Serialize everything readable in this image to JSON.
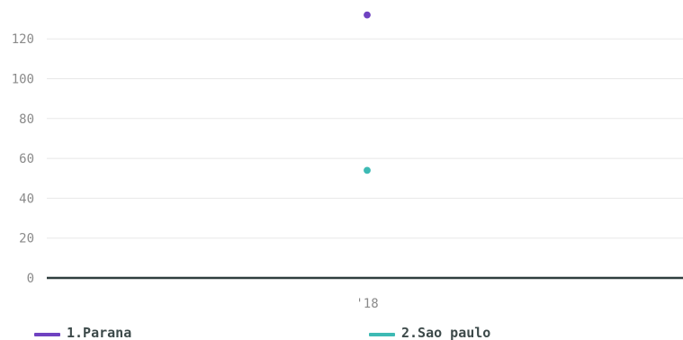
{
  "chart_data": {
    "type": "scatter",
    "categories": [
      "'18"
    ],
    "series": [
      {
        "name": "1.Parana",
        "color": "#6f42c1",
        "values": [
          132
        ]
      },
      {
        "name": "2.Sao paulo",
        "color": "#3dbab4",
        "values": [
          54
        ]
      }
    ],
    "ylim": [
      0,
      130
    ],
    "yticks": [
      0,
      20,
      40,
      60,
      80,
      100,
      120
    ],
    "grid": true,
    "legend": "bottom-left"
  },
  "colors": {
    "grid": "#e8e8e8",
    "baseline": "#2f3e3e",
    "tick": "#8a8a8a"
  }
}
